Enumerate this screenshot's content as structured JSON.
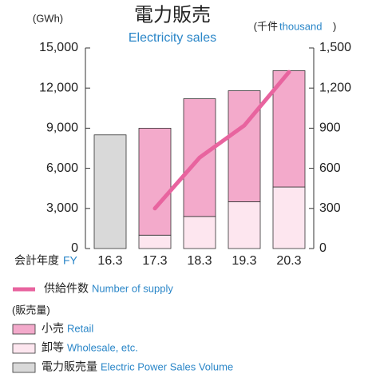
{
  "chart_data": {
    "type": "stacked_bar_line",
    "title": "電力販売",
    "subtitle": "Electricity sales",
    "y_label": "(GWh)",
    "y2_label_ja": "(千件",
    "y2_label_en": "thousand",
    "y2_label_end": ")",
    "x_label_ja": "会計年度",
    "x_label_en": "FY",
    "legend_group": "(販売量)",
    "categories": [
      "16.3",
      "17.3",
      "18.3",
      "19.3",
      "20.3"
    ],
    "ylim": [
      0,
      15000
    ],
    "yticks": [
      0,
      {
        "value": 3000,
        "label": "3,000"
      },
      {
        "value": 6000,
        "label": "6,000"
      },
      {
        "value": 9000,
        "label": "9,000"
      },
      {
        "value": 12000,
        "label": "12,000"
      },
      {
        "value": 15000,
        "label": "15,000"
      }
    ],
    "y2lim": [
      0,
      1500
    ],
    "y2ticks": [
      0,
      300,
      600,
      900,
      {
        "value": 1200,
        "label": "1,200"
      },
      {
        "value": 1500,
        "label": "1,500"
      }
    ],
    "series": [
      {
        "name": "卸等",
        "name_en": "Wholesale, etc.",
        "color": "#fde6ef",
        "kind": "bar",
        "values": [
          null,
          1000,
          2400,
          3500,
          4600
        ]
      },
      {
        "name": "小売",
        "name_en": "Retail",
        "color": "#f3aacb",
        "kind": "bar",
        "values": [
          null,
          8000,
          8800,
          8300,
          8700
        ]
      },
      {
        "name": "電力販売量",
        "name_en": "Electric Power Sales Volume",
        "color": "#d9d9d9",
        "kind": "bar",
        "values": [
          8500,
          null,
          null,
          null,
          null
        ]
      },
      {
        "name": "供給件数",
        "name_en": "Number of supply",
        "color": "#e8649f",
        "kind": "line",
        "axis": "y2",
        "values": [
          null,
          300,
          680,
          920,
          1320
        ]
      }
    ]
  }
}
